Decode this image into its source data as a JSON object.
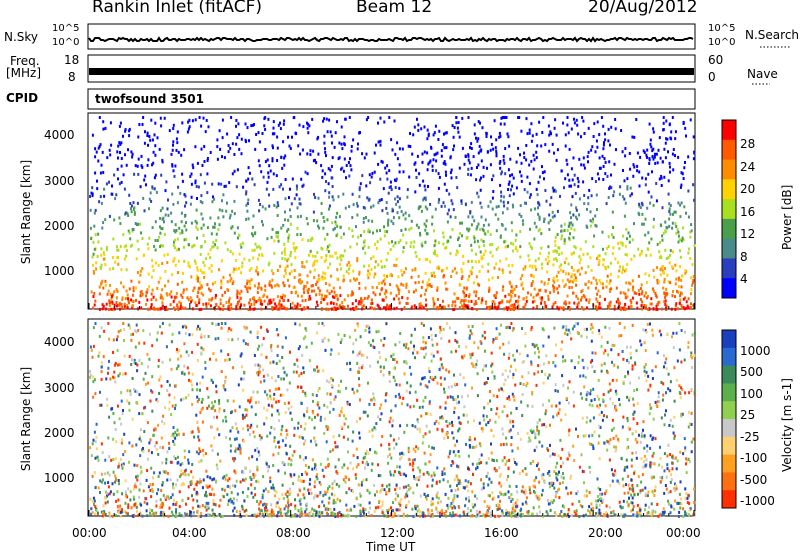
{
  "header": {
    "title": "Rankin Inlet (fitACF)",
    "beam": "Beam 12",
    "date": "20/Aug/2012"
  },
  "top_panels": {
    "nsky_label": "N.Sky",
    "nsky_ticks": [
      "10^5",
      "10^0"
    ],
    "nsearch_label": "N.Search",
    "freq_label_1": "Freq.",
    "freq_label_2": "[MHz]",
    "freq_ticks": [
      "18",
      "8"
    ],
    "nave_ticks": [
      "60",
      "0"
    ],
    "nave_label": "Nave",
    "cpid_label": "CPID",
    "cpid_value": "twofsound 3501"
  },
  "chart_data": [
    {
      "type": "heatmap",
      "panel": "power",
      "ylabel": "Slant Range [km]",
      "xlabel": "",
      "ylim": [
        180,
        4500
      ],
      "xlim": [
        0,
        24
      ],
      "yticks": [
        1000,
        2000,
        3000,
        4000
      ],
      "colorbar": {
        "label": "Power [dB]",
        "ticks": [
          "28",
          "24",
          "20",
          "16",
          "12",
          "8",
          "4"
        ],
        "colors": [
          "#ff0000",
          "#ff5a00",
          "#ff8c00",
          "#ffd200",
          "#a8e020",
          "#4aa04a",
          "#4a8a8a",
          "#2a3fc0",
          "#0000ff"
        ]
      }
    },
    {
      "type": "heatmap",
      "panel": "velocity",
      "ylabel": "Slant Range [km]",
      "xlabel": "Time UT",
      "ylim": [
        180,
        4500
      ],
      "xlim": [
        0,
        24
      ],
      "yticks": [
        1000,
        2000,
        3000,
        4000
      ],
      "xticks": [
        "00:00",
        "04:00",
        "08:00",
        "12:00",
        "16:00",
        "20:00",
        "00:00"
      ],
      "colorbar": {
        "label": "Velocity [m s-1]",
        "ticks": [
          "1000",
          "500",
          "100",
          "25",
          "-25",
          "-100",
          "-500",
          "-1000"
        ],
        "colors": [
          "#1a3fbf",
          "#2a6ad0",
          "#3a8a5a",
          "#5ab04a",
          "#8fd050",
          "#c8c8c8",
          "#ffd070",
          "#ffa020",
          "#ff7010",
          "#ff3000"
        ]
      }
    }
  ]
}
